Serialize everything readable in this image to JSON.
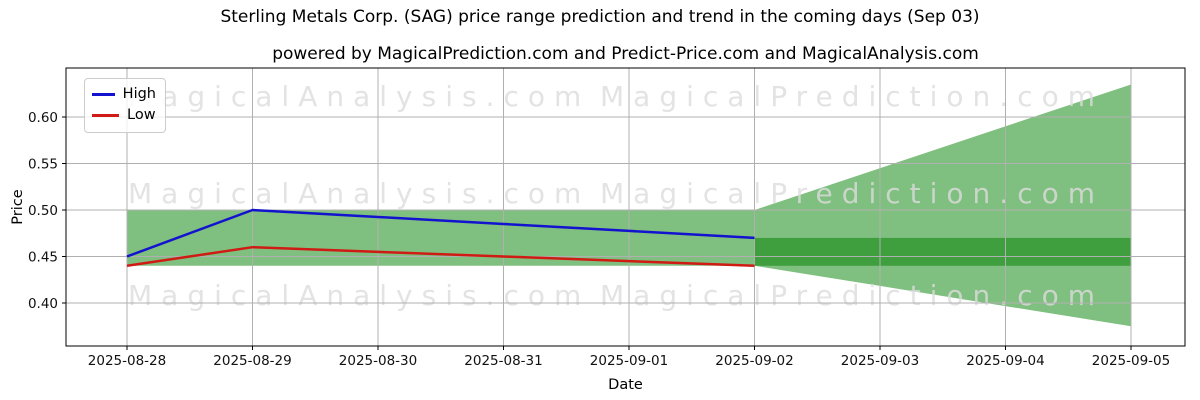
{
  "figure": {
    "title": "Sterling Metals Corp. (SAG) price range prediction and trend in the coming days (Sep 03)",
    "subtitle": "powered by MagicalPrediction.com and Predict-Price.com and MagicalAnalysis.com"
  },
  "legend": {
    "items": [
      {
        "label": "High",
        "color": "#1313cf"
      },
      {
        "label": "Low",
        "color": "#cf1b13"
      }
    ]
  },
  "watermarks": {
    "left_text": "MagicalAnalysis.com",
    "right_text": "MagicalPrediction.com",
    "color": "#dcdcdc"
  },
  "chart_data": {
    "type": "line",
    "title": "Sterling Metals Corp. (SAG) price range prediction and trend in the coming days (Sep 03)",
    "xlabel": "Date",
    "ylabel": "Price",
    "x_categories": [
      "2025-08-28",
      "2025-08-29",
      "2025-08-30",
      "2025-08-31",
      "2025-09-01",
      "2025-09-02",
      "2025-09-03",
      "2025-09-04",
      "2025-09-05"
    ],
    "yticks": [
      0.4,
      0.45,
      0.5,
      0.55,
      0.6
    ],
    "ytick_labels": [
      "0.40",
      "0.45",
      "0.50",
      "0.55",
      "0.60"
    ],
    "ylim": [
      0.354,
      0.653
    ],
    "grid": true,
    "grid_color": "#b0b0b0",
    "legend_position": "upper left",
    "series": [
      {
        "name": "High",
        "color": "#1313cf",
        "values": [
          0.45,
          0.5,
          0.4925,
          0.485,
          0.4775,
          0.47,
          null,
          null,
          null
        ]
      },
      {
        "name": "Low",
        "color": "#cf1b13",
        "values": [
          0.44,
          0.46,
          0.455,
          0.45,
          0.445,
          0.44,
          null,
          null,
          null
        ]
      }
    ],
    "range_band": {
      "comment_top_bottom_are_price_values": true,
      "color": "rgba(0,128,0,0.5)",
      "start_index": 0,
      "flat_until_index": 5,
      "end_index": 8,
      "top": 0.5,
      "bottom": 0.44,
      "end_top": 0.635,
      "end_bottom": 0.375
    },
    "dark_band": {
      "color": "rgba(0,128,0,0.5)",
      "start_index": 5,
      "end_index": 8,
      "top": 0.47,
      "bottom": 0.44
    }
  }
}
